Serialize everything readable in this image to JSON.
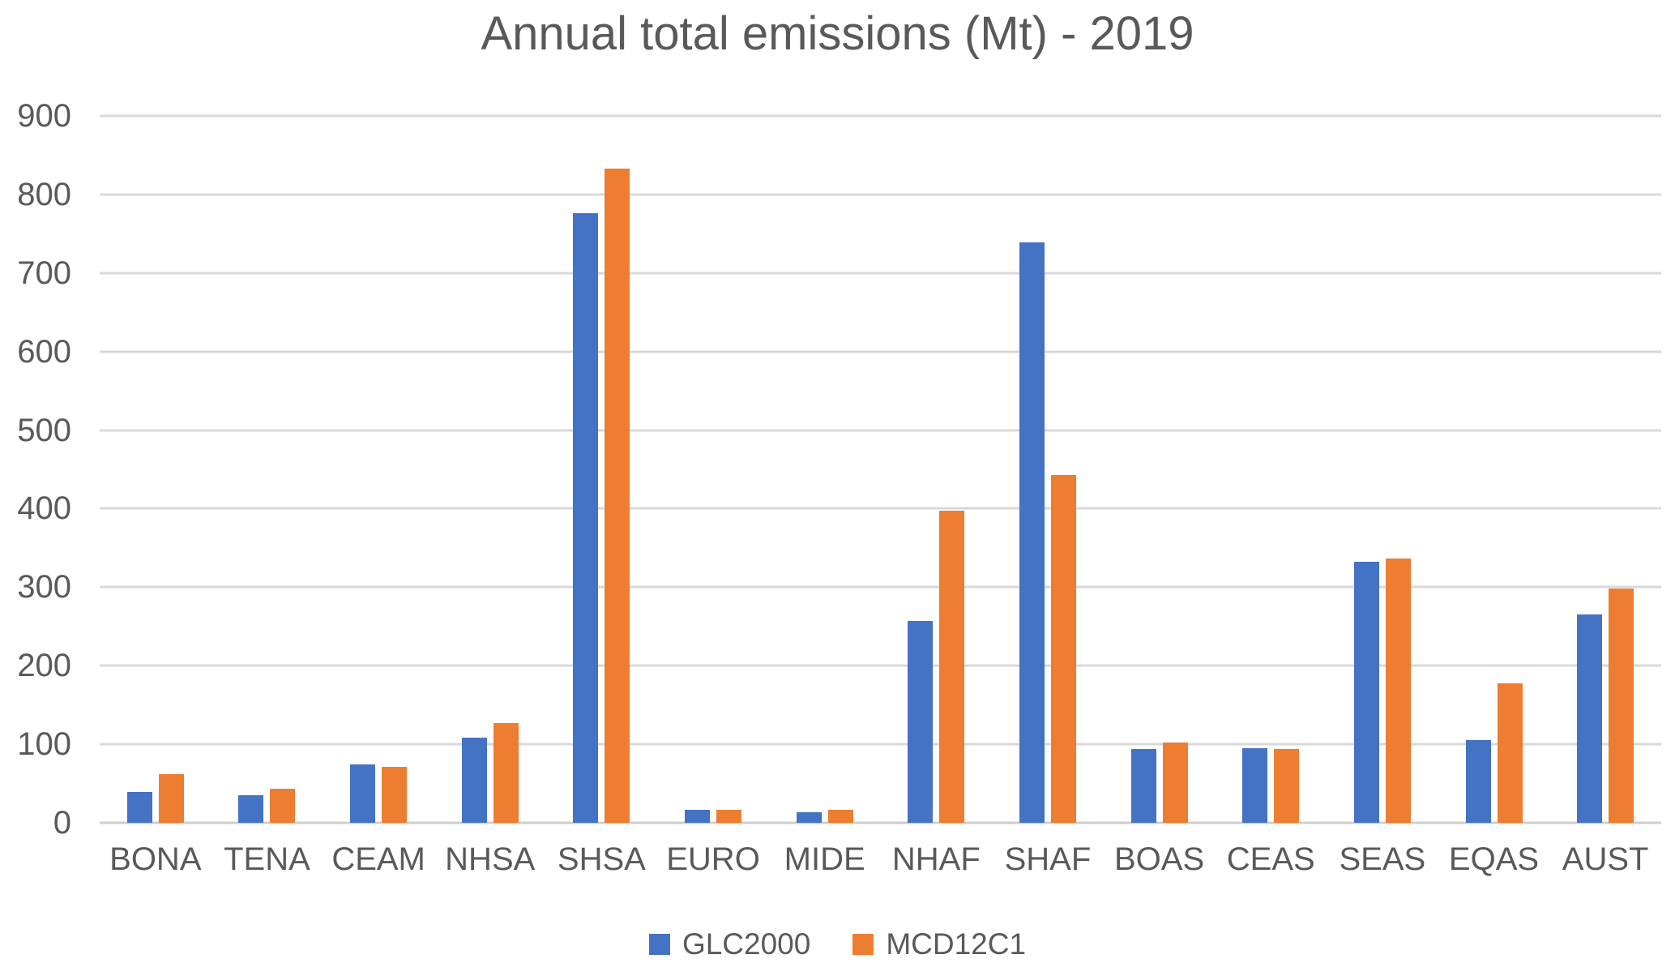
{
  "chart_data": {
    "type": "bar",
    "title": "Annual total emissions (Mt) - 2019",
    "categories": [
      "BONA",
      "TENA",
      "CEAM",
      "NHSA",
      "SHSA",
      "EURO",
      "MIDE",
      "NHAF",
      "SHAF",
      "BOAS",
      "CEAS",
      "SEAS",
      "EQAS",
      "AUST"
    ],
    "series": [
      {
        "name": "GLC2000",
        "color": "#4472C4",
        "values": [
          39,
          35,
          74,
          108,
          776,
          17,
          13,
          257,
          739,
          94,
          95,
          332,
          105,
          265
        ]
      },
      {
        "name": "MCD12C1",
        "color": "#ED7D31",
        "values": [
          62,
          43,
          71,
          127,
          833,
          17,
          17,
          397,
          443,
          102,
          94,
          337,
          178,
          298
        ]
      }
    ],
    "xlabel": "",
    "ylabel": "",
    "ylim": [
      0,
      900
    ],
    "yticks": [
      0,
      100,
      200,
      300,
      400,
      500,
      600,
      700,
      800,
      900
    ],
    "grid": "horizontal",
    "legend_position": "bottom"
  },
  "colors": {
    "gridline": "#D9D9D9",
    "baseline": "#CFCFCF",
    "axis_text": "#595959",
    "title_text": "#595959",
    "background": "#FFFFFF"
  }
}
